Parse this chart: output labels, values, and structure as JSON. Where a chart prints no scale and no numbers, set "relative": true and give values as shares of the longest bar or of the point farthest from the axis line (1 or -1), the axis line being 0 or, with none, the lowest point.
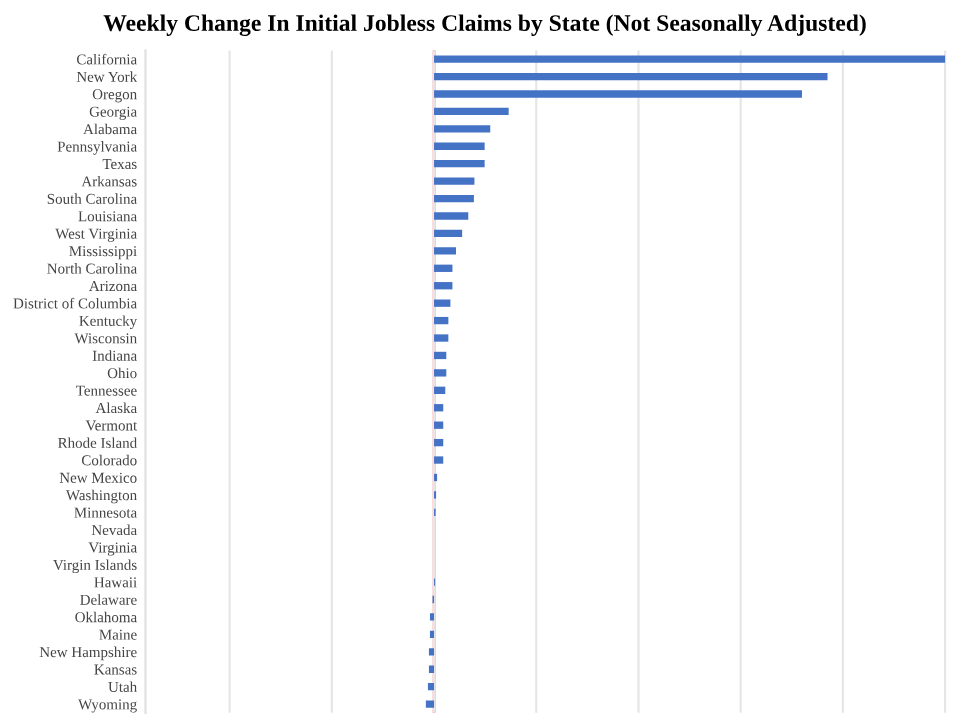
{
  "chart_data": {
    "type": "bar",
    "orientation": "horizontal",
    "relative": true,
    "title": "Weekly Change In Initial Jobless Claims by State (Not Seasonally Adjusted)",
    "categories": [
      "California",
      "New York",
      "Oregon",
      "Georgia",
      "Alabama",
      "Pennsylvania",
      "Texas",
      "Arkansas",
      "South Carolina",
      "Louisiana",
      "West Virginia",
      "Mississippi",
      "North Carolina",
      "Arizona",
      "District of Columbia",
      "Kentucky",
      "Wisconsin",
      "Indiana",
      "Ohio",
      "Tennessee",
      "Alaska",
      "Vermont",
      "Rhode Island",
      "Colorado",
      "New Mexico",
      "Washington",
      "Minnesota",
      "Nevada",
      "Virginia",
      "Virgin Islands",
      "Hawaii",
      "Delaware",
      "Oklahoma",
      "Maine",
      "New Hampshire",
      "Kansas",
      "Utah",
      "Wyoming"
    ],
    "values": [
      1.0,
      0.77,
      0.72,
      0.146,
      0.11,
      0.099,
      0.099,
      0.079,
      0.078,
      0.067,
      0.055,
      0.043,
      0.036,
      0.036,
      0.032,
      0.028,
      0.028,
      0.024,
      0.024,
      0.022,
      0.018,
      0.018,
      0.018,
      0.018,
      0.006,
      0.004,
      0.003,
      0,
      0,
      0,
      0.002,
      -0.003,
      -0.008,
      -0.008,
      -0.01,
      -0.01,
      -0.012,
      -0.016
    ],
    "color": "#4472c4",
    "grid": "x",
    "tick_labels": "y",
    "ref_lines": [
      {
        "axis": "x",
        "value": 0,
        "color": "#e8545a"
      }
    ]
  }
}
